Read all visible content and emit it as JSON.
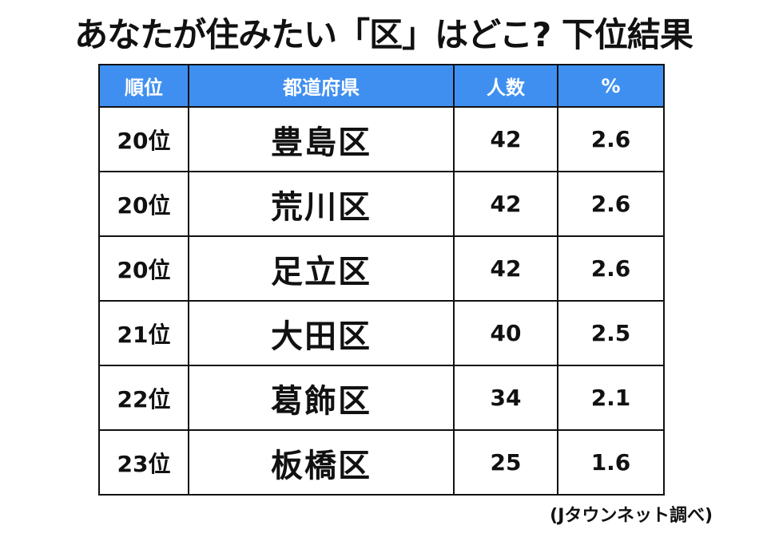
{
  "header": {
    "title": "あなたが住みたい「区」はどこ? 下位結果"
  },
  "table": {
    "columns": [
      "順位",
      "都道府県",
      "人数",
      "%"
    ],
    "rows": [
      [
        "20位",
        "豊島区",
        42,
        2.6
      ],
      [
        "20位",
        "荒川区",
        42,
        2.6
      ],
      [
        "20位",
        "足立区",
        42,
        2.6
      ],
      [
        "21位",
        "大田区",
        40,
        2.5
      ],
      [
        "22位",
        "葛飾区",
        34,
        2.1
      ],
      [
        "23位",
        "板橋区",
        25,
        1.6
      ]
    ]
  },
  "footer": {
    "source": "(Jタウンネット調べ)"
  }
}
